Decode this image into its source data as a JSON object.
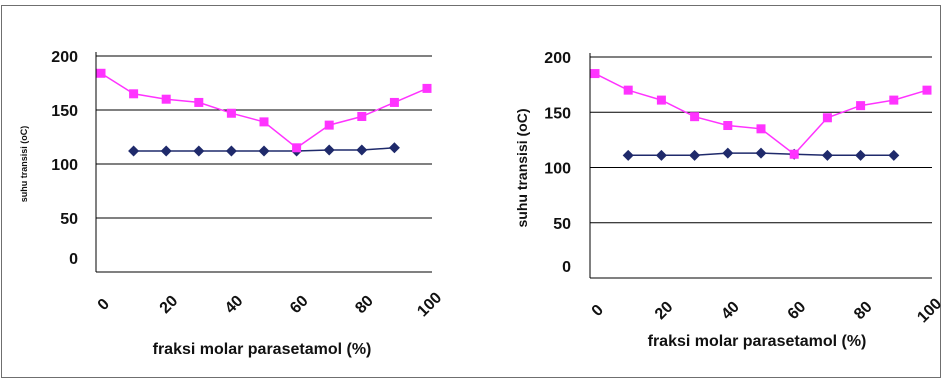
{
  "colors": {
    "series_a": "#1f2a6b",
    "series_b": "#ff33ff",
    "grid": "#000000",
    "frame": "#6f6f6f"
  },
  "chart_data": [
    {
      "type": "line",
      "xlabel": "fraksi molar parasetamol (%)",
      "ylabel": "suhu transisi (oC)",
      "xlim": [
        0,
        100
      ],
      "ylim": [
        0,
        200
      ],
      "grid": true,
      "legend": "none",
      "xticks": [
        0,
        20,
        40,
        60,
        80,
        100
      ],
      "yticks": [
        0,
        50,
        100,
        150,
        200
      ],
      "series": [
        {
          "color": "#1f2a6b",
          "marker": "diamond",
          "x": [
            10,
            20,
            30,
            40,
            50,
            60,
            70,
            80,
            90
          ],
          "y": [
            112,
            112,
            112,
            112,
            112,
            112,
            113,
            113,
            115
          ]
        },
        {
          "color": "#ff33ff",
          "marker": "square",
          "x": [
            0,
            10,
            20,
            30,
            40,
            50,
            60,
            70,
            80,
            90,
            100
          ],
          "y": [
            184,
            165,
            160,
            157,
            147,
            139,
            115,
            136,
            144,
            157,
            170
          ]
        }
      ]
    },
    {
      "type": "line",
      "xlabel": "fraksi molar parasetamol (%)",
      "ylabel": "suhu transisi (oC)",
      "xlim": [
        0,
        100
      ],
      "ylim": [
        0,
        200
      ],
      "grid": true,
      "legend": "none",
      "xticks": [
        0,
        20,
        40,
        60,
        80,
        100
      ],
      "yticks": [
        0,
        50,
        100,
        150,
        200
      ],
      "series": [
        {
          "color": "#1f2a6b",
          "marker": "diamond",
          "x": [
            10,
            20,
            30,
            40,
            50,
            60,
            70,
            80,
            90
          ],
          "y": [
            111,
            111,
            111,
            113,
            113,
            112,
            111,
            111,
            111
          ]
        },
        {
          "color": "#ff33ff",
          "marker": "square",
          "x": [
            0,
            10,
            20,
            30,
            40,
            50,
            60,
            70,
            80,
            90,
            100
          ],
          "y": [
            185,
            170,
            161,
            146,
            138,
            135,
            112,
            145,
            156,
            161,
            170
          ]
        }
      ]
    }
  ]
}
